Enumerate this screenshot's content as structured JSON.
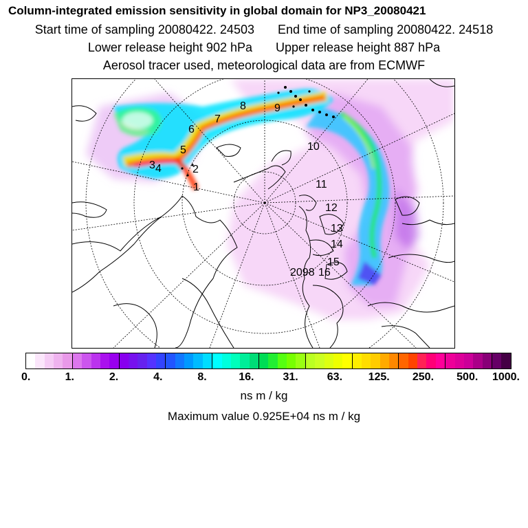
{
  "header": {
    "title": "Column-integrated emission sensitivity in global domain for NP3_20080421",
    "start_label": "Start time of sampling 20080422. 24503",
    "end_label": "End time of sampling 20080422. 24518",
    "lower_label": "Lower release height  902 hPa",
    "upper_label": "Upper release height  887 hPa",
    "subtitle": "Aerosol tracer used, meteorological data are from ECMWF"
  },
  "map": {
    "trajectory_labels": [
      "1",
      "2",
      "3",
      "4",
      "5",
      "6",
      "7",
      "8",
      "9",
      "10",
      "11",
      "12",
      "13",
      "14",
      "15",
      "16",
      "2098"
    ]
  },
  "colorbar": {
    "ticks": [
      "0.",
      "1.",
      "2.",
      "4.",
      "8.",
      "16.",
      "31.",
      "63.",
      "125.",
      "250.",
      "500.",
      "1000."
    ],
    "colors": [
      "#ffffff",
      "#fbe6fb",
      "#f5ccf5",
      "#efb3ef",
      "#e999e9",
      "#dd77ee",
      "#cc55ee",
      "#bb33ee",
      "#aa11ee",
      "#9900ee",
      "#8800ee",
      "#7711ee",
      "#6622ee",
      "#5533ff",
      "#3344ff",
      "#2255ff",
      "#1177ff",
      "#0099ff",
      "#00bbff",
      "#00ddff",
      "#00ffff",
      "#00ffdd",
      "#00ffbb",
      "#00ee99",
      "#00dd77",
      "#00dd55",
      "#22ee33",
      "#55ff11",
      "#77ff00",
      "#99ff11",
      "#bbff22",
      "#ccff22",
      "#ddff11",
      "#eeff00",
      "#ffff00",
      "#ffee00",
      "#ffdd00",
      "#ffcc00",
      "#ffaa00",
      "#ff8800",
      "#ff6600",
      "#ff4400",
      "#ff2255",
      "#ff0077",
      "#ff0099",
      "#ee0099",
      "#dd0099",
      "#cc0099",
      "#aa0088",
      "#880077",
      "#660066",
      "#440044"
    ],
    "unit": "ns m / kg"
  },
  "footer": {
    "max_value": "Maximum value  0.925E+04 ns m / kg"
  }
}
